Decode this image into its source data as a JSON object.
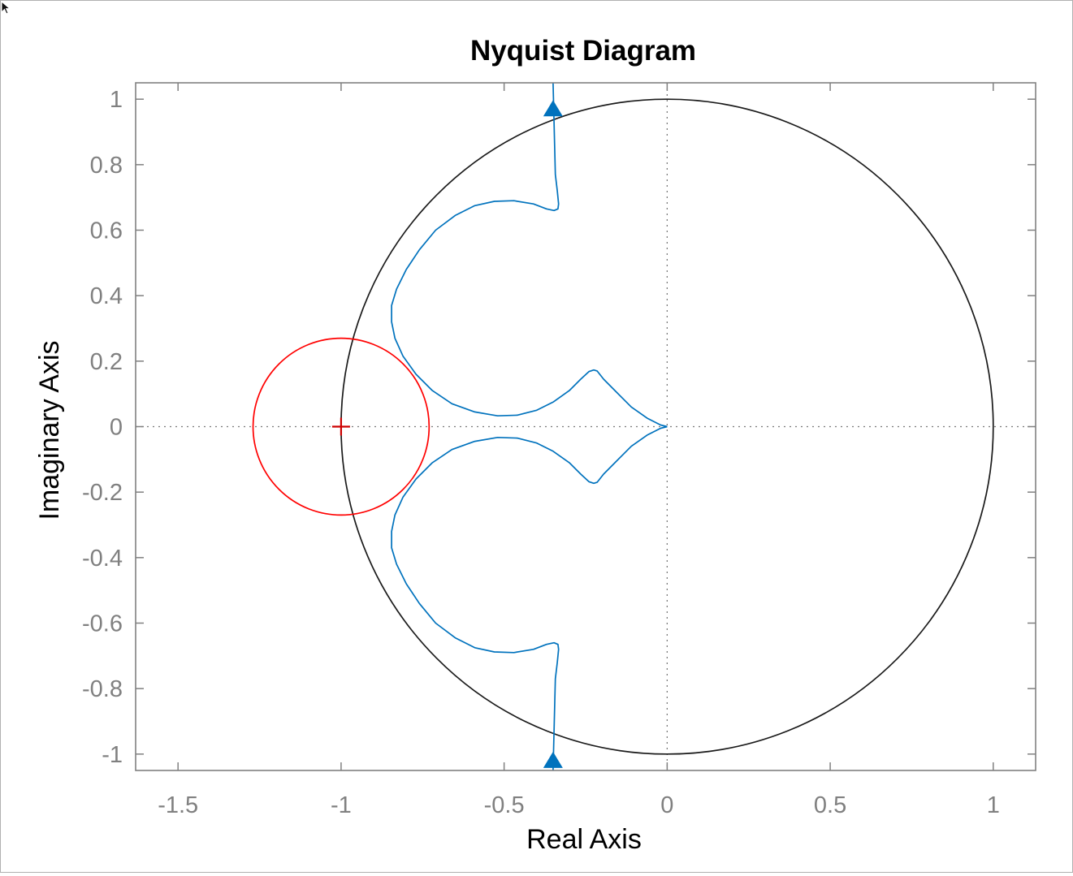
{
  "chart_data": {
    "type": "line",
    "title": "Nyquist Diagram",
    "xlabel": "Real Axis",
    "ylabel": "Imaginary Axis",
    "xlim": [
      -1.63,
      1.13
    ],
    "ylim": [
      -1.05,
      1.05
    ],
    "xticks": [
      -1.5,
      -1,
      -0.5,
      0,
      0.5,
      1
    ],
    "yticks": [
      -1,
      -0.8,
      -0.6,
      -0.4,
      -0.2,
      0,
      0.2,
      0.4,
      0.6,
      0.8,
      1
    ],
    "xtick_labels": [
      "-1.5",
      "-1",
      "-0.5",
      "0",
      "0.5",
      "1"
    ],
    "ytick_labels": [
      "-1",
      "-0.8",
      "-0.6",
      "-0.4",
      "-0.2",
      "0",
      "0.2",
      "0.4",
      "0.6",
      "0.8",
      "1"
    ],
    "grid": false,
    "zero_lines": "dotted",
    "colors": {
      "nyquist": "#0072bd",
      "unit_circle": "#1a1a1a",
      "critical_circle": "#ff0000",
      "critical_point": "#cc0000",
      "axes_box": "#808080",
      "tick_label": "#808080"
    },
    "series": [
      {
        "style": "line",
        "color": "#0072bd",
        "x": [
          -0.35,
          -0.348,
          -0.345,
          -0.343,
          -0.337,
          -0.333,
          -0.335,
          -0.347,
          -0.37,
          -0.41,
          -0.47,
          -0.53,
          -0.59,
          -0.65,
          -0.71,
          -0.76,
          -0.8,
          -0.83,
          -0.845,
          -0.845,
          -0.835,
          -0.81,
          -0.77,
          -0.72,
          -0.66,
          -0.59,
          -0.52,
          -0.46,
          -0.4,
          -0.35,
          -0.3,
          -0.265,
          -0.24,
          -0.225,
          -0.215,
          -0.195,
          -0.16,
          -0.11,
          -0.06,
          -0.02,
          0.0
        ],
        "y": [
          1.05,
          0.97,
          0.85,
          0.77,
          0.72,
          0.68,
          0.665,
          0.66,
          0.665,
          0.68,
          0.69,
          0.688,
          0.675,
          0.645,
          0.6,
          0.54,
          0.48,
          0.42,
          0.37,
          0.32,
          0.27,
          0.215,
          0.16,
          0.11,
          0.07,
          0.045,
          0.033,
          0.035,
          0.05,
          0.075,
          0.11,
          0.145,
          0.168,
          0.173,
          0.17,
          0.145,
          0.11,
          0.06,
          0.025,
          0.005,
          0.0
        ]
      },
      {
        "style": "line",
        "color": "#0072bd",
        "x": [
          0.0,
          -0.02,
          -0.06,
          -0.11,
          -0.16,
          -0.195,
          -0.215,
          -0.225,
          -0.24,
          -0.265,
          -0.3,
          -0.35,
          -0.4,
          -0.46,
          -0.52,
          -0.59,
          -0.66,
          -0.72,
          -0.77,
          -0.81,
          -0.835,
          -0.845,
          -0.845,
          -0.83,
          -0.8,
          -0.76,
          -0.71,
          -0.65,
          -0.59,
          -0.53,
          -0.47,
          -0.41,
          -0.37,
          -0.347,
          -0.335,
          -0.333,
          -0.337,
          -0.343,
          -0.345,
          -0.348,
          -0.35
        ],
        "y": [
          0.0,
          -0.005,
          -0.025,
          -0.06,
          -0.11,
          -0.145,
          -0.17,
          -0.173,
          -0.168,
          -0.145,
          -0.11,
          -0.075,
          -0.05,
          -0.035,
          -0.033,
          -0.045,
          -0.07,
          -0.11,
          -0.16,
          -0.215,
          -0.27,
          -0.32,
          -0.37,
          -0.42,
          -0.48,
          -0.54,
          -0.6,
          -0.645,
          -0.675,
          -0.688,
          -0.69,
          -0.68,
          -0.665,
          -0.66,
          -0.665,
          -0.68,
          -0.72,
          -0.77,
          -0.85,
          -0.97,
          -1.05
        ]
      }
    ],
    "arrows": [
      {
        "x": -0.35,
        "y": 0.97,
        "direction": "up"
      },
      {
        "x": -0.35,
        "y": -1.02,
        "direction": "up"
      }
    ],
    "circles": [
      {
        "cx": 0,
        "cy": 0,
        "r": 1,
        "color": "#1a1a1a"
      },
      {
        "cx": -1,
        "cy": 0,
        "r": 0.27,
        "color": "#ff0000"
      }
    ],
    "critical_point": {
      "x": -1,
      "y": 0,
      "marker": "+"
    }
  }
}
